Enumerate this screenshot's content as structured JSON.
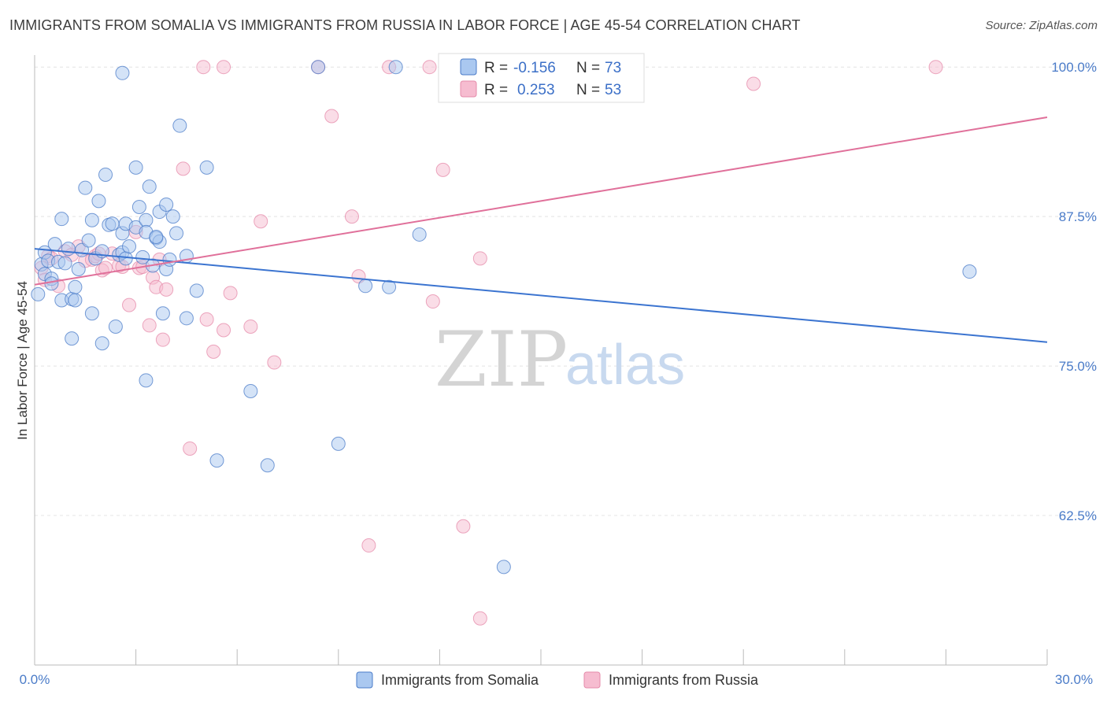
{
  "title": "IMMIGRANTS FROM SOMALIA VS IMMIGRANTS FROM RUSSIA IN LABOR FORCE | AGE 45-54 CORRELATION CHART",
  "source": "Source: ZipAtlas.com",
  "watermark": {
    "zip": "ZIP",
    "atlas": "atlas"
  },
  "colors": {
    "somalia_fill": "#aac8f0",
    "somalia_stroke": "#4a7bc8",
    "somalia_line": "#3b74d0",
    "russia_fill": "#f6bcd0",
    "russia_stroke": "#e58aaa",
    "russia_line": "#e0709a",
    "grid": "#e4e4e4",
    "axis_text": "#4a7bc8"
  },
  "legend": {
    "rows": [
      {
        "r_label": "R =",
        "r_value": "-0.156",
        "n_label": "N =",
        "n_value": "73"
      },
      {
        "r_label": "R =",
        "r_value": "0.253",
        "n_label": "N =",
        "n_value": "53"
      }
    ]
  },
  "chart_data": {
    "type": "scatter",
    "title": "IMMIGRANTS FROM SOMALIA VS IMMIGRANTS FROM RUSSIA IN LABOR FORCE | AGE 45-54 CORRELATION CHART",
    "xlabel": "",
    "ylabel": "In Labor Force | Age 45-54",
    "xlim": [
      0,
      30
    ],
    "ylim": [
      50,
      101
    ],
    "x_tick_labels": [
      "0.0%",
      "30.0%"
    ],
    "y_ticks": [
      62.5,
      75.0,
      87.5,
      100.0
    ],
    "y_tick_labels": [
      "62.5%",
      "75.0%",
      "87.5%",
      "100.0%"
    ],
    "grid": true,
    "series": [
      {
        "name": "Immigrants from Somalia",
        "trend": {
          "x0": 0,
          "y0": 84.8,
          "x1": 30,
          "y1": 77.0
        },
        "points": [
          [
            0.1,
            81.0
          ],
          [
            0.2,
            83.5
          ],
          [
            0.3,
            84.5
          ],
          [
            0.3,
            82.7
          ],
          [
            0.4,
            83.8
          ],
          [
            0.5,
            82.3
          ],
          [
            0.5,
            81.9
          ],
          [
            0.6,
            85.2
          ],
          [
            0.7,
            83.7
          ],
          [
            0.8,
            80.5
          ],
          [
            0.8,
            87.3
          ],
          [
            0.9,
            83.6
          ],
          [
            1.0,
            84.8
          ],
          [
            1.1,
            80.6
          ],
          [
            1.1,
            77.3
          ],
          [
            1.2,
            80.5
          ],
          [
            1.2,
            81.6
          ],
          [
            1.3,
            83.1
          ],
          [
            1.4,
            84.7
          ],
          [
            1.5,
            89.9
          ],
          [
            1.6,
            85.5
          ],
          [
            1.7,
            79.4
          ],
          [
            1.7,
            87.2
          ],
          [
            1.8,
            84.0
          ],
          [
            1.9,
            88.8
          ],
          [
            2.0,
            76.9
          ],
          [
            2.0,
            84.6
          ],
          [
            2.1,
            91.0
          ],
          [
            2.2,
            86.8
          ],
          [
            2.3,
            86.9
          ],
          [
            2.4,
            78.3
          ],
          [
            2.5,
            84.3
          ],
          [
            2.6,
            86.1
          ],
          [
            2.6,
            84.5
          ],
          [
            2.7,
            86.9
          ],
          [
            2.6,
            99.5
          ],
          [
            2.7,
            84.0
          ],
          [
            2.8,
            85.0
          ],
          [
            3.0,
            86.6
          ],
          [
            3.0,
            91.6
          ],
          [
            3.1,
            88.3
          ],
          [
            3.2,
            84.1
          ],
          [
            3.3,
            73.8
          ],
          [
            3.3,
            87.2
          ],
          [
            3.3,
            86.2
          ],
          [
            3.4,
            90.0
          ],
          [
            3.5,
            83.4
          ],
          [
            3.6,
            85.7
          ],
          [
            3.7,
            85.4
          ],
          [
            3.6,
            85.8
          ],
          [
            3.7,
            87.9
          ],
          [
            3.8,
            79.4
          ],
          [
            3.9,
            83.1
          ],
          [
            3.9,
            88.5
          ],
          [
            4.0,
            83.9
          ],
          [
            4.1,
            87.5
          ],
          [
            4.2,
            86.1
          ],
          [
            4.3,
            95.1
          ],
          [
            4.5,
            84.2
          ],
          [
            4.5,
            79.0
          ],
          [
            4.8,
            81.3
          ],
          [
            5.1,
            91.6
          ],
          [
            5.4,
            67.1
          ],
          [
            6.4,
            72.9
          ],
          [
            6.9,
            66.7
          ],
          [
            8.4,
            100.0
          ],
          [
            9.0,
            68.5
          ],
          [
            9.8,
            81.7
          ],
          [
            10.5,
            81.6
          ],
          [
            10.7,
            100.0
          ],
          [
            11.4,
            86.0
          ],
          [
            13.9,
            58.2
          ],
          [
            27.7,
            82.9
          ]
        ]
      },
      {
        "name": "Immigrants from Russia",
        "trend": {
          "x0": 0,
          "y0": 81.8,
          "x1": 30,
          "y1": 95.8
        },
        "points": [
          [
            0.2,
            83.2
          ],
          [
            0.3,
            82.2
          ],
          [
            0.4,
            84.2
          ],
          [
            0.5,
            84.0
          ],
          [
            0.7,
            81.7
          ],
          [
            0.9,
            84.6
          ],
          [
            1.1,
            84.3
          ],
          [
            1.3,
            85.0
          ],
          [
            1.5,
            83.8
          ],
          [
            1.7,
            83.9
          ],
          [
            1.8,
            84.2
          ],
          [
            1.9,
            84.4
          ],
          [
            2.0,
            83.0
          ],
          [
            2.1,
            83.2
          ],
          [
            2.3,
            84.4
          ],
          [
            2.5,
            83.4
          ],
          [
            2.6,
            83.3
          ],
          [
            2.8,
            80.1
          ],
          [
            3.0,
            86.2
          ],
          [
            3.1,
            83.2
          ],
          [
            3.2,
            83.3
          ],
          [
            3.4,
            78.4
          ],
          [
            3.5,
            82.4
          ],
          [
            3.6,
            81.6
          ],
          [
            3.7,
            83.9
          ],
          [
            3.8,
            77.2
          ],
          [
            3.9,
            81.4
          ],
          [
            4.4,
            91.5
          ],
          [
            4.6,
            68.1
          ],
          [
            5.1,
            78.9
          ],
          [
            5.3,
            76.2
          ],
          [
            5.6,
            78.0
          ],
          [
            5.8,
            81.1
          ],
          [
            5.0,
            100.0
          ],
          [
            5.6,
            100.0
          ],
          [
            6.4,
            78.3
          ],
          [
            6.7,
            87.1
          ],
          [
            7.1,
            75.3
          ],
          [
            8.4,
            100.0
          ],
          [
            8.8,
            95.9
          ],
          [
            9.4,
            87.5
          ],
          [
            9.6,
            82.5
          ],
          [
            9.9,
            60.0
          ],
          [
            10.5,
            100.0
          ],
          [
            11.8,
            80.4
          ],
          [
            11.7,
            100.0
          ],
          [
            12.1,
            91.4
          ],
          [
            12.7,
            61.6
          ],
          [
            13.2,
            84.0
          ],
          [
            13.6,
            100.0
          ],
          [
            13.2,
            53.9
          ],
          [
            21.3,
            98.6
          ],
          [
            26.7,
            100.0
          ]
        ]
      }
    ]
  },
  "bottom_legend": [
    {
      "label": "Immigrants from Somalia"
    },
    {
      "label": "Immigrants from Russia"
    }
  ]
}
